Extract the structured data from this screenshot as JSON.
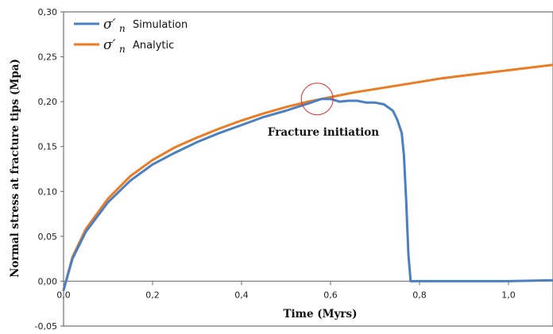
{
  "chart_data": {
    "type": "line",
    "xlabel": "Time (Myrs)",
    "ylabel": "Normal stress at fracture tips (Mpa)",
    "xlim": [
      0,
      1.1
    ],
    "ylim": [
      -0.05,
      0.3
    ],
    "x_ticks": [
      0.0,
      0.2,
      0.4,
      0.6,
      0.8,
      1.0
    ],
    "x_tick_labels": [
      "0,0",
      "0,2",
      "0,4",
      "0,6",
      "0,8",
      "1,0"
    ],
    "y_ticks": [
      -0.05,
      0.0,
      0.05,
      0.1,
      0.15,
      0.2,
      0.25,
      0.3
    ],
    "y_tick_labels": [
      "-0,05",
      "0,00",
      "0,05",
      "0,10",
      "0,15",
      "0,20",
      "0,25",
      "0,30"
    ],
    "grid": false,
    "legend_position": "top-left",
    "series": [
      {
        "name": "Simulation",
        "legend_symbol": "σ′",
        "legend_subscript": "n",
        "color": "#4a7fc1",
        "x": [
          0.0,
          0.02,
          0.05,
          0.1,
          0.15,
          0.2,
          0.25,
          0.3,
          0.35,
          0.4,
          0.45,
          0.5,
          0.55,
          0.58,
          0.6,
          0.62,
          0.64,
          0.66,
          0.68,
          0.7,
          0.72,
          0.74,
          0.75,
          0.76,
          0.765,
          0.77,
          0.775,
          0.78,
          0.8,
          0.9,
          1.0,
          1.1
        ],
        "y": [
          -0.01,
          0.025,
          0.055,
          0.088,
          0.112,
          0.13,
          0.143,
          0.155,
          0.165,
          0.174,
          0.183,
          0.19,
          0.198,
          0.203,
          0.203,
          0.2,
          0.201,
          0.201,
          0.199,
          0.199,
          0.197,
          0.19,
          0.18,
          0.165,
          0.14,
          0.09,
          0.03,
          0.0,
          0.0,
          0.0,
          0.0,
          0.001
        ]
      },
      {
        "name": "Analytic",
        "legend_symbol": "σ′",
        "legend_subscript": "n",
        "color": "#ec7c23",
        "x": [
          0.0,
          0.02,
          0.05,
          0.1,
          0.15,
          0.2,
          0.25,
          0.3,
          0.35,
          0.4,
          0.45,
          0.5,
          0.55,
          0.6,
          0.65,
          0.7,
          0.75,
          0.8,
          0.85,
          0.9,
          0.95,
          1.0,
          1.05,
          1.1
        ],
        "y": [
          -0.01,
          0.027,
          0.058,
          0.092,
          0.117,
          0.135,
          0.149,
          0.16,
          0.17,
          0.179,
          0.187,
          0.194,
          0.2,
          0.205,
          0.21,
          0.214,
          0.218,
          0.222,
          0.226,
          0.229,
          0.232,
          0.235,
          0.238,
          0.241
        ]
      }
    ],
    "annotations": [
      {
        "text": "Fracture initiation",
        "x": 0.57,
        "y": 0.203,
        "marker": "circle",
        "marker_color": "#e03030"
      }
    ]
  }
}
